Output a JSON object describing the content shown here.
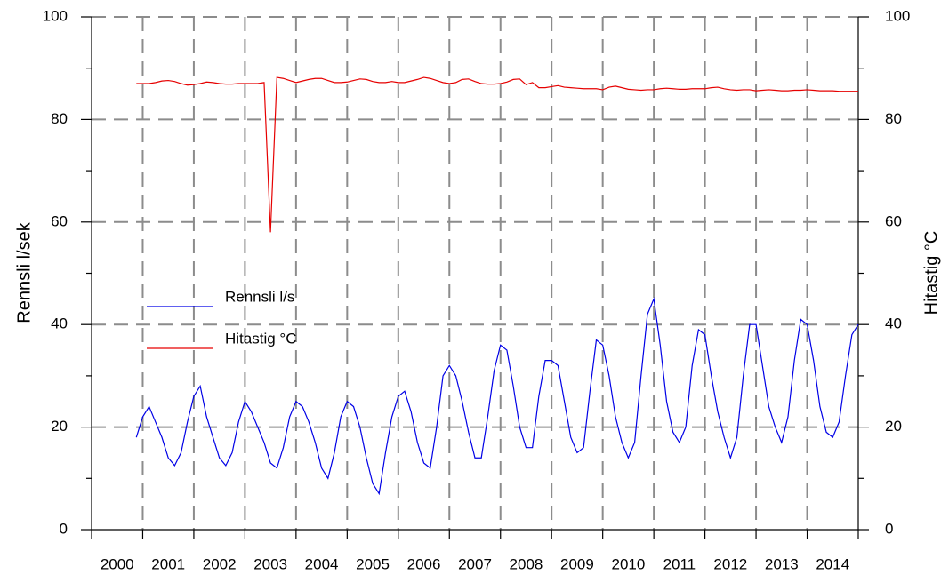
{
  "chart_data": {
    "type": "line",
    "ylabel": "Rennsli l/sek",
    "y2label": "Hitastig °C",
    "xlim": [
      2000,
      2015
    ],
    "xticks": [
      2000,
      2001,
      2002,
      2003,
      2004,
      2005,
      2006,
      2007,
      2008,
      2009,
      2010,
      2011,
      2012,
      2013,
      2014,
      2015
    ],
    "categories": [
      "2000",
      "2001",
      "2002",
      "2003",
      "2004",
      "2005",
      "2006",
      "2007",
      "2008",
      "2009",
      "2010",
      "2011",
      "2012",
      "2013",
      "2014"
    ],
    "ylim": [
      0,
      100
    ],
    "yticks": [
      0,
      20,
      40,
      60,
      80,
      100
    ],
    "yminor_ticks": [
      10,
      30,
      50,
      70,
      90
    ],
    "y2lim": [
      0,
      100
    ],
    "y2ticks": [
      0,
      20,
      40,
      60,
      80,
      100
    ],
    "grid": true,
    "legend": "left",
    "x": [
      2000.875,
      2001,
      2001.125,
      2001.25,
      2001.375,
      2001.5,
      2001.625,
      2001.75,
      2001.875,
      2002,
      2002.125,
      2002.25,
      2002.375,
      2002.5,
      2002.625,
      2002.75,
      2002.875,
      2003,
      2003.125,
      2003.25,
      2003.375,
      2003.5,
      2003.625,
      2003.75,
      2003.875,
      2004,
      2004.125,
      2004.25,
      2004.375,
      2004.5,
      2004.625,
      2004.75,
      2004.875,
      2005,
      2005.125,
      2005.25,
      2005.375,
      2005.5,
      2005.625,
      2005.75,
      2005.875,
      2006,
      2006.125,
      2006.25,
      2006.375,
      2006.5,
      2006.625,
      2006.75,
      2006.875,
      2007,
      2007.125,
      2007.25,
      2007.375,
      2007.5,
      2007.625,
      2007.75,
      2007.875,
      2008,
      2008.125,
      2008.25,
      2008.375,
      2008.5,
      2008.625,
      2008.75,
      2008.875,
      2009,
      2009.125,
      2009.25,
      2009.375,
      2009.5,
      2009.625,
      2009.75,
      2009.875,
      2010,
      2010.125,
      2010.25,
      2010.375,
      2010.5,
      2010.625,
      2010.75,
      2010.875,
      2011,
      2011.125,
      2011.25,
      2011.375,
      2011.5,
      2011.625,
      2011.75,
      2011.875,
      2012,
      2012.125,
      2012.25,
      2012.375,
      2012.5,
      2012.625,
      2012.75,
      2012.875,
      2013,
      2013.125,
      2013.25,
      2013.375,
      2013.5,
      2013.625,
      2013.75,
      2013.875,
      2014,
      2014.125,
      2014.25,
      2014.375,
      2014.5,
      2014.625,
      2014.75,
      2014.875,
      2015
    ],
    "series": [
      {
        "name": "Rennsli l/s",
        "color": "#0000e6",
        "values": [
          18,
          22,
          24,
          21,
          18,
          14,
          12.5,
          15,
          21,
          26,
          28,
          22,
          18,
          14,
          12.5,
          15,
          21,
          25,
          23,
          20,
          17,
          13,
          12,
          16,
          22,
          25,
          24,
          21,
          17,
          12,
          10,
          15,
          22,
          25,
          24,
          20,
          14,
          9,
          7,
          15,
          22,
          26,
          27,
          23,
          17,
          13,
          12,
          20,
          30,
          32,
          30,
          25,
          19,
          14,
          14,
          22,
          31,
          36,
          35,
          28,
          20,
          16,
          16,
          26,
          33,
          33,
          32,
          25,
          18,
          15,
          16,
          27,
          37,
          36,
          30,
          22,
          17,
          14,
          17,
          30,
          42,
          45,
          36,
          25,
          19,
          17,
          20,
          32,
          39,
          38,
          30,
          23,
          18,
          14,
          18,
          30,
          40,
          40,
          32,
          24,
          20,
          17,
          22,
          33,
          41,
          40,
          33,
          24,
          19,
          18,
          21,
          30,
          38,
          40
        ]
      },
      {
        "name": "Hitastig °C",
        "color": "#e60000",
        "axis": "y2",
        "values": [
          87,
          87,
          87,
          87.2,
          87.5,
          87.6,
          87.4,
          87,
          86.7,
          86.8,
          87,
          87.3,
          87.2,
          87,
          86.9,
          86.9,
          87,
          87,
          87,
          87,
          87.2,
          58,
          88.2,
          88,
          87.6,
          87.2,
          87.5,
          87.8,
          88,
          88,
          87.6,
          87.2,
          87.2,
          87.3,
          87.6,
          87.9,
          87.8,
          87.4,
          87.2,
          87.2,
          87.4,
          87.2,
          87.2,
          87.5,
          87.8,
          88.2,
          88,
          87.6,
          87.2,
          87,
          87.2,
          87.8,
          87.9,
          87.4,
          87,
          86.9,
          86.9,
          87,
          87.3,
          87.8,
          87.9,
          86.8,
          87.2,
          86.2,
          86.2,
          86.4,
          86.6,
          86.3,
          86.2,
          86.1,
          86,
          86,
          86,
          85.8,
          86.3,
          86.5,
          86.2,
          85.9,
          85.8,
          85.7,
          85.8,
          85.8,
          86,
          86.1,
          86,
          85.9,
          85.9,
          86,
          86,
          86,
          86.2,
          86.3,
          86,
          85.8,
          85.7,
          85.8,
          85.8,
          85.6,
          85.7,
          85.8,
          85.7,
          85.6,
          85.6,
          85.7,
          85.7,
          85.8,
          85.7,
          85.6,
          85.6,
          85.6,
          85.5,
          85.5,
          85.5,
          85.5
        ]
      }
    ]
  }
}
